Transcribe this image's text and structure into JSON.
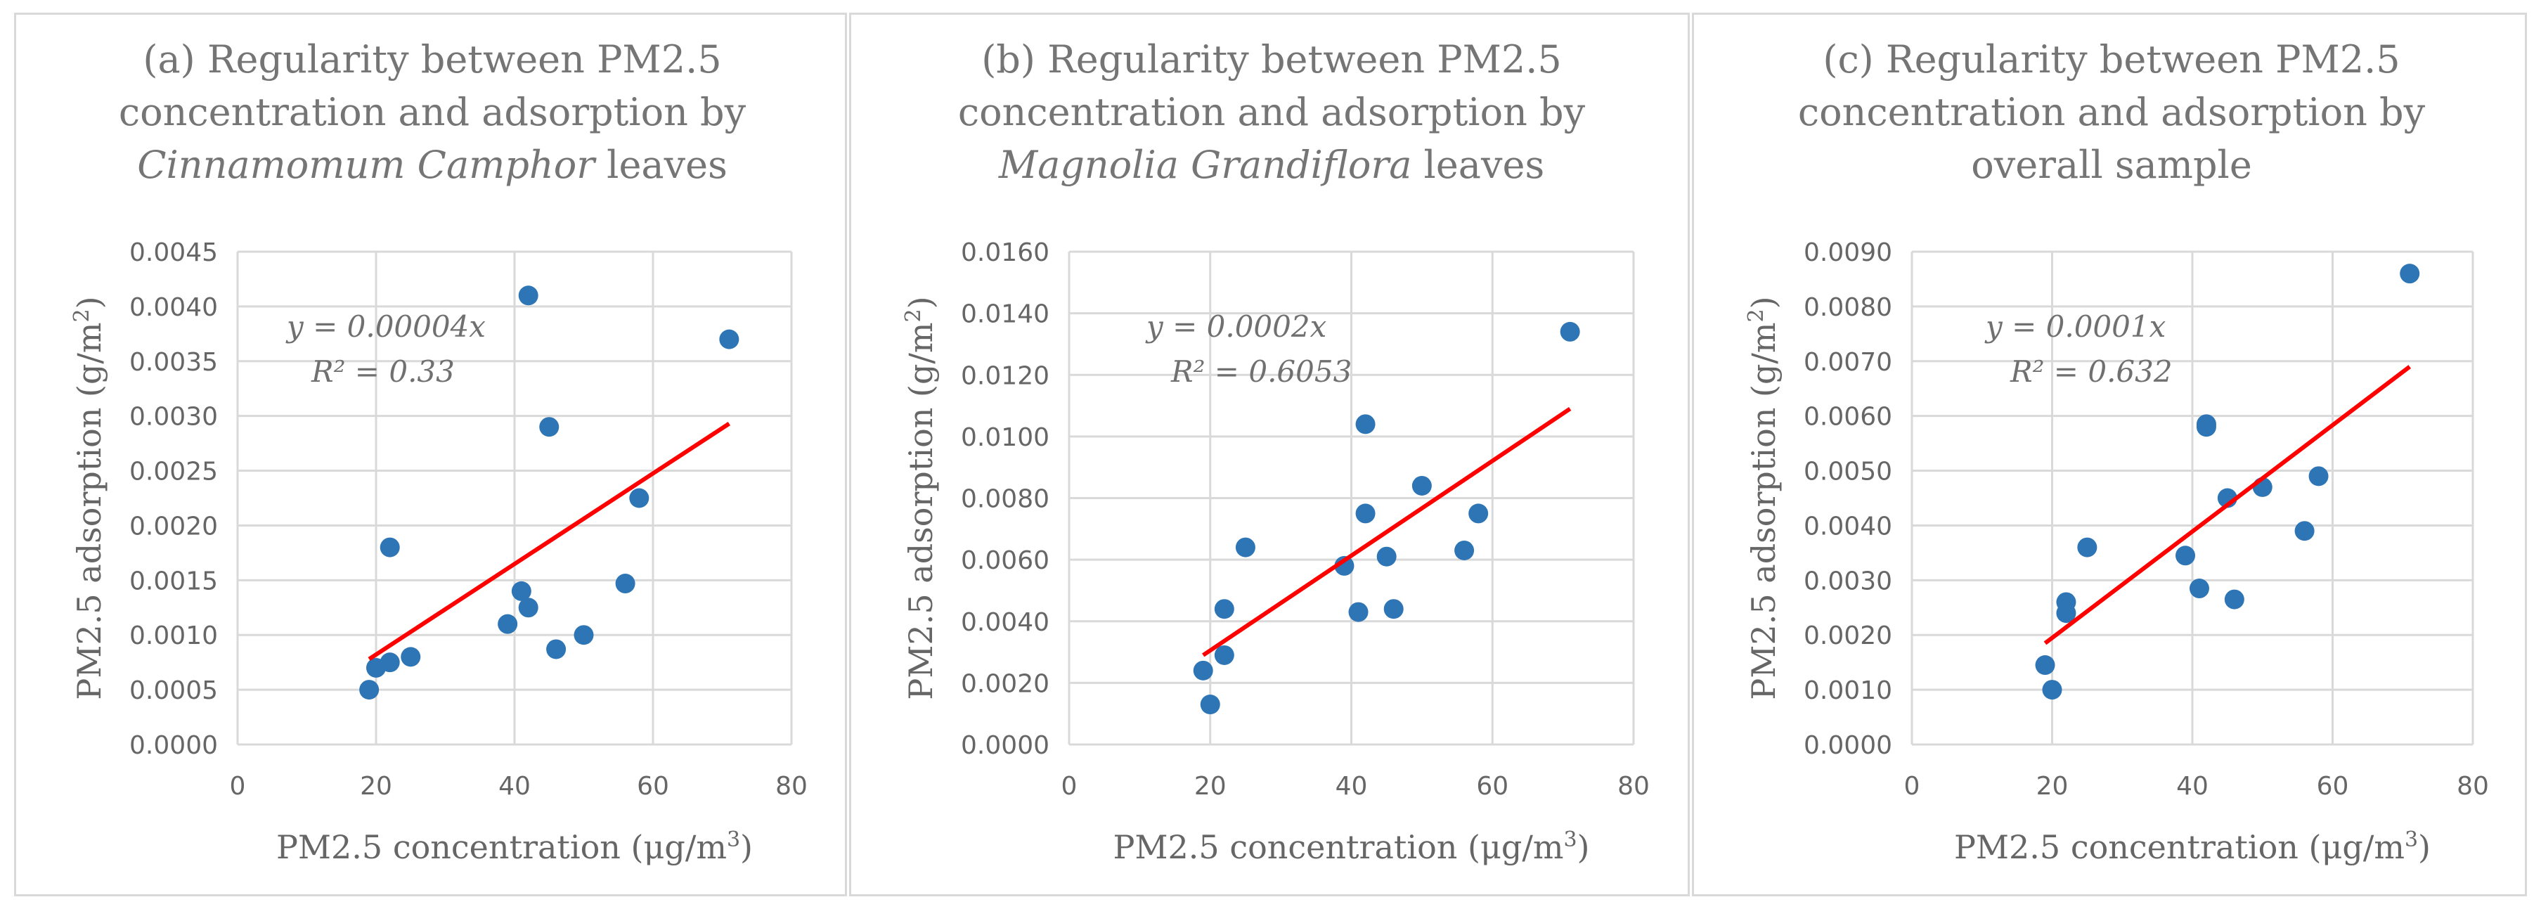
{
  "colors": {
    "point": "#2e75b6",
    "trend": "#ff0000",
    "grid": "#d9d9d9",
    "text": "#666666"
  },
  "chart_data": [
    {
      "type": "scatter",
      "title_lines": [
        "(a) Regularity between PM2.5",
        "concentration and adsorption by"
      ],
      "title_italic": "Cinnamomum Camphor",
      "title_tail": " leaves",
      "xlabel_main": "PM2.5 concentration (μg/m",
      "xlabel_sup": "3",
      "xlabel_close": ")",
      "ylabel_main": "PM2.5 adsorption (g/m",
      "ylabel_sup": "2",
      "ylabel_close": ")",
      "xlim": [
        0,
        80
      ],
      "ylim": [
        0,
        0.0045
      ],
      "xticks": [
        0,
        20,
        40,
        60,
        80
      ],
      "xtick_labels": [
        "0",
        "20",
        "40",
        "60",
        "80"
      ],
      "yticks": [
        0,
        0.0005,
        0.001,
        0.0015,
        0.002,
        0.0025,
        0.003,
        0.0035,
        0.004,
        0.0045
      ],
      "ytick_labels": [
        "0.0000",
        "0.0005",
        "0.0010",
        "0.0015",
        "0.0020",
        "0.0025",
        "0.0030",
        "0.0035",
        "0.0040",
        "0.0045"
      ],
      "points": [
        {
          "x": 19,
          "y": 0.0005
        },
        {
          "x": 20,
          "y": 0.0007
        },
        {
          "x": 22,
          "y": 0.00075
        },
        {
          "x": 22,
          "y": 0.0018
        },
        {
          "x": 25,
          "y": 0.0008
        },
        {
          "x": 39,
          "y": 0.0011
        },
        {
          "x": 41,
          "y": 0.0014
        },
        {
          "x": 42,
          "y": 0.00125
        },
        {
          "x": 42,
          "y": 0.0041
        },
        {
          "x": 45,
          "y": 0.0029
        },
        {
          "x": 46,
          "y": 0.00087
        },
        {
          "x": 50,
          "y": 0.001
        },
        {
          "x": 56,
          "y": 0.00147
        },
        {
          "x": 58,
          "y": 0.00225
        },
        {
          "x": 71,
          "y": 0.0037
        }
      ],
      "trendline": {
        "x1": 19,
        "y1": 0.00078,
        "x2": 71,
        "y2": 0.00293
      },
      "equation": "y = 0.00004x",
      "r2": "R² = 0.33"
    },
    {
      "type": "scatter",
      "title_lines": [
        "(b) Regularity between PM2.5",
        "concentration and adsorption by"
      ],
      "title_italic": "Magnolia Grandiflora",
      "title_tail": " leaves",
      "xlabel_main": "PM2.5 concentration (μg/m",
      "xlabel_sup": "3",
      "xlabel_close": ")",
      "ylabel_main": "PM2.5 adsorption (g/m",
      "ylabel_sup": "2",
      "ylabel_close": ")",
      "xlim": [
        0,
        80
      ],
      "ylim": [
        0,
        0.016
      ],
      "xticks": [
        0,
        20,
        40,
        60,
        80
      ],
      "xtick_labels": [
        "0",
        "20",
        "40",
        "60",
        "80"
      ],
      "yticks": [
        0,
        0.002,
        0.004,
        0.006,
        0.008,
        0.01,
        0.012,
        0.014,
        0.016
      ],
      "ytick_labels": [
        "0.0000",
        "0.0020",
        "0.0040",
        "0.0060",
        "0.0080",
        "0.0100",
        "0.0120",
        "0.0140",
        "0.0160"
      ],
      "points": [
        {
          "x": 19,
          "y": 0.0024
        },
        {
          "x": 20,
          "y": 0.0013
        },
        {
          "x": 22,
          "y": 0.0029
        },
        {
          "x": 22,
          "y": 0.0044
        },
        {
          "x": 25,
          "y": 0.0064
        },
        {
          "x": 39,
          "y": 0.0058
        },
        {
          "x": 41,
          "y": 0.0043
        },
        {
          "x": 42,
          "y": 0.0075
        },
        {
          "x": 42,
          "y": 0.0104
        },
        {
          "x": 45,
          "y": 0.0061
        },
        {
          "x": 46,
          "y": 0.0044
        },
        {
          "x": 50,
          "y": 0.0084
        },
        {
          "x": 56,
          "y": 0.0063
        },
        {
          "x": 58,
          "y": 0.0075
        },
        {
          "x": 71,
          "y": 0.0134
        }
      ],
      "trendline": {
        "x1": 19,
        "y1": 0.0029,
        "x2": 71,
        "y2": 0.0109
      },
      "equation": "y = 0.0002x",
      "r2": "R² = 0.6053"
    },
    {
      "type": "scatter",
      "title_lines": [
        "(c) Regularity between PM2.5",
        "concentration and adsorption by"
      ],
      "title_italic": "",
      "title_tail": "overall sample",
      "xlabel_main": "PM2.5 concentration (μg/m",
      "xlabel_sup": "3",
      "xlabel_close": ")",
      "ylabel_main": "PM2.5 adsorption (g/m",
      "ylabel_sup": "2",
      "ylabel_close": ")",
      "xlim": [
        0,
        80
      ],
      "ylim": [
        0,
        0.009
      ],
      "xticks": [
        0,
        20,
        40,
        60,
        80
      ],
      "xtick_labels": [
        "0",
        "20",
        "40",
        "60",
        "80"
      ],
      "yticks": [
        0,
        0.001,
        0.002,
        0.003,
        0.004,
        0.005,
        0.006,
        0.007,
        0.008,
        0.009
      ],
      "ytick_labels": [
        "0.0000",
        "0.0010",
        "0.0020",
        "0.0030",
        "0.0040",
        "0.0050",
        "0.0060",
        "0.0070",
        "0.0080",
        "0.0090"
      ],
      "points": [
        {
          "x": 19,
          "y": 0.00145
        },
        {
          "x": 20,
          "y": 0.001
        },
        {
          "x": 22,
          "y": 0.0024
        },
        {
          "x": 22,
          "y": 0.0026
        },
        {
          "x": 25,
          "y": 0.0036
        },
        {
          "x": 39,
          "y": 0.00345
        },
        {
          "x": 41,
          "y": 0.00285
        },
        {
          "x": 42,
          "y": 0.0058
        },
        {
          "x": 42,
          "y": 0.00585
        },
        {
          "x": 45,
          "y": 0.0045
        },
        {
          "x": 46,
          "y": 0.00265
        },
        {
          "x": 50,
          "y": 0.0047
        },
        {
          "x": 56,
          "y": 0.0039
        },
        {
          "x": 58,
          "y": 0.0049
        },
        {
          "x": 71,
          "y": 0.0086
        }
      ],
      "trendline": {
        "x1": 19,
        "y1": 0.00185,
        "x2": 71,
        "y2": 0.0069
      },
      "equation": "y = 0.0001x",
      "r2": "R² = 0.632"
    }
  ]
}
